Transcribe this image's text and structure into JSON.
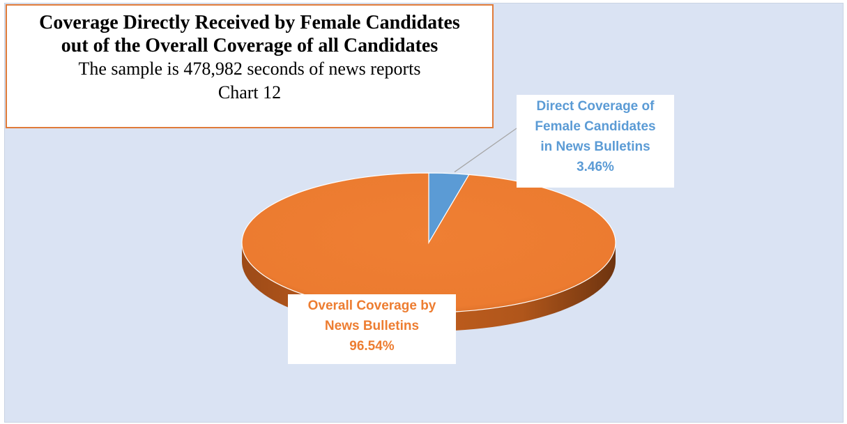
{
  "chart_data": {
    "type": "pie",
    "title": "Coverage Directly Received by Female Candidates out of the Overall Coverage of all Candidates",
    "title_lines": [
      "Coverage Directly Received by Female Candidates",
      "out of the Overall Coverage of all Candidates"
    ],
    "subtitle": "The sample is 478,982 seconds of news reports",
    "caption": "Chart 12",
    "slices": [
      {
        "label_lines": [
          "Direct Coverage of",
          "Female Candidates",
          "in News Bulletins"
        ],
        "value": 3.46,
        "display": "3.46%",
        "color": "#5b9bd5"
      },
      {
        "label_lines": [
          "Overall Coverage by",
          "News Bulletins"
        ],
        "value": 96.54,
        "display": "96.54%",
        "color": "#ed7d31"
      }
    ],
    "style": "3d-pie",
    "background": "#dae3f3",
    "title_border_color": "#e07b39"
  }
}
